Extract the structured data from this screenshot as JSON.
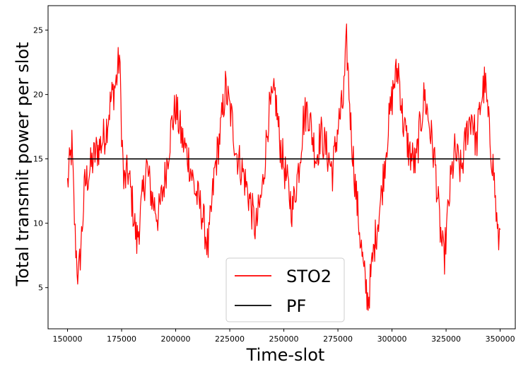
{
  "chart_data": {
    "type": "line",
    "xlabel": "Time-slot",
    "ylabel": "Total transmit power per slot",
    "xlim": [
      141000,
      357000
    ],
    "ylim": [
      1.8,
      26.9
    ],
    "x_ticks": [
      150000,
      175000,
      200000,
      225000,
      250000,
      275000,
      300000,
      325000,
      350000
    ],
    "x_tick_labels": [
      "150000",
      "175000",
      "200000",
      "225000",
      "250000",
      "275000",
      "300000",
      "325000",
      "350000"
    ],
    "y_ticks": [
      5,
      10,
      15,
      20,
      25
    ],
    "y_tick_labels": [
      "5",
      "10",
      "15",
      "20",
      "25"
    ],
    "grid": false,
    "legend_position": "lower-center",
    "series": [
      {
        "name": "STO2",
        "color": "#ff0000",
        "x": [
          150000,
          152000,
          153500,
          155000,
          156500,
          158000,
          161000,
          163000,
          165000,
          167500,
          170000,
          172500,
          174000,
          175000,
          176000,
          178000,
          180000,
          182000,
          184000,
          186500,
          189000,
          192000,
          195000,
          198000,
          200000,
          203000,
          206000,
          209000,
          212000,
          215000,
          218000,
          221000,
          223000,
          226000,
          228000,
          231000,
          234000,
          237000,
          240000,
          243000,
          246000,
          248000,
          251000,
          254000,
          257000,
          259000,
          261000,
          263000,
          265000,
          267000,
          270000,
          272500,
          275000,
          277500,
          279000,
          281000,
          283000,
          285000,
          287000,
          289000,
          292000,
          295000,
          298000,
          301000,
          303000,
          305000,
          308000,
          311000,
          313000,
          315000,
          317000,
          320000,
          322000,
          324000,
          327000,
          329000,
          332000,
          335000,
          337000,
          339000,
          341000,
          343000,
          345000,
          347000,
          349000,
          350000
        ],
        "values": [
          13.0,
          16.0,
          9.0,
          5.5,
          9.0,
          13.0,
          14.5,
          15.5,
          16.0,
          17.0,
          19.5,
          21.0,
          23.0,
          17.5,
          13.0,
          14.0,
          11.5,
          8.5,
          11.0,
          14.5,
          12.0,
          10.5,
          13.5,
          17.5,
          19.0,
          16.5,
          15.0,
          12.5,
          11.0,
          8.0,
          14.0,
          17.5,
          20.5,
          18.0,
          15.5,
          14.0,
          12.0,
          9.5,
          12.5,
          18.5,
          20.0,
          16.5,
          13.5,
          11.0,
          14.5,
          18.0,
          19.0,
          17.0,
          15.0,
          17.0,
          15.5,
          14.0,
          17.5,
          19.5,
          24.0,
          17.5,
          13.0,
          9.5,
          6.0,
          4.0,
          8.5,
          12.0,
          17.0,
          21.0,
          22.0,
          18.0,
          15.5,
          14.5,
          17.5,
          20.0,
          18.0,
          14.5,
          10.0,
          7.0,
          13.0,
          15.5,
          14.0,
          17.5,
          18.5,
          16.0,
          19.5,
          21.0,
          17.0,
          14.0,
          8.5,
          9.5
        ]
      },
      {
        "name": "PF",
        "color": "#000000",
        "x": [
          150000,
          350000
        ],
        "values": [
          15.0,
          15.0
        ]
      }
    ]
  }
}
